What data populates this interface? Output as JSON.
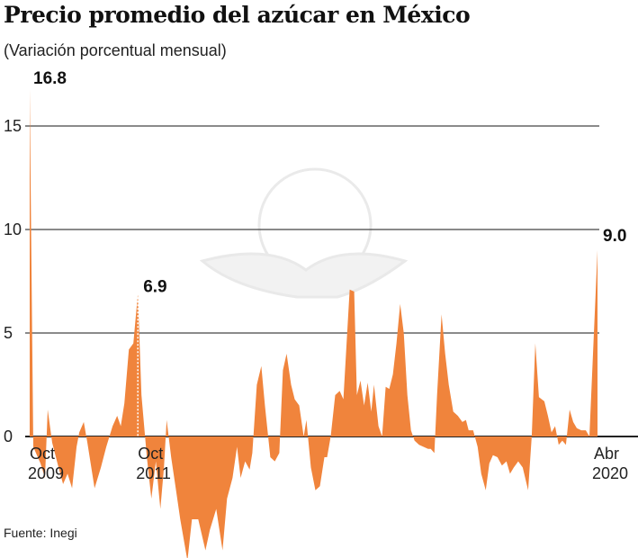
{
  "chart_data": {
    "type": "area",
    "title": "Precio promedio del azúcar en México",
    "subtitle": "(Variación porcentual mensual)",
    "source": "Fuente: Inegi",
    "xlabel": "",
    "ylabel": "",
    "ylim": [
      -6.5,
      17
    ],
    "yticks": [
      0,
      5,
      10,
      15
    ],
    "ytick_labels": [
      "0",
      "5",
      "10",
      "15"
    ],
    "grid": true,
    "x_unit": "months since Oct 2009",
    "xlim": [
      0,
      126
    ],
    "xticks": [
      {
        "month": 0,
        "line1": "Oct",
        "line2": "2009"
      },
      {
        "month": 24,
        "line1": "Oct",
        "line2": "2011"
      },
      {
        "month": 126,
        "line1": "Abr",
        "line2": "2020"
      }
    ],
    "annotations": [
      {
        "month": 0,
        "value": 16.8,
        "label": "16.8"
      },
      {
        "month": 24,
        "value": 6.9,
        "label": "6.9"
      },
      {
        "month": 126,
        "value": 9.0,
        "label": "9.0"
      }
    ],
    "color": "#f0843c",
    "x": [
      0,
      0.8,
      2.4,
      3.4,
      4,
      5,
      6.4,
      7.4,
      8.4,
      9.4,
      10.4,
      11,
      12,
      12.8,
      14.4,
      15.8,
      17,
      18.4,
      19.4,
      20.2,
      21,
      22,
      23,
      24,
      24.8,
      26,
      27,
      28,
      29,
      29.8,
      30.4,
      31.4,
      32.4,
      33.4,
      35,
      36,
      37.4,
      39,
      40,
      41.4,
      42.8,
      43.8,
      45,
      46,
      46.8,
      47.8,
      48.8,
      49.4,
      50.4,
      51.4,
      52.2,
      53.4,
      54.4,
      55.4,
      56.2,
      57,
      58,
      58.8,
      59.8,
      60.8,
      61.4,
      62.4,
      63.4,
      64.4,
      65.4,
      66,
      66.8,
      67.8,
      68.8,
      69.6,
      71,
      72,
      72.6,
      73.4,
      74.2,
      75,
      75.8,
      76.4,
      77.4,
      78.2,
      79,
      79.8,
      80.6,
      81.4,
      82.2,
      83,
      83.8,
      84.6,
      85.4,
      86.4,
      87.4,
      88.4,
      89,
      89.8,
      90.4,
      91.4,
      92.2,
      93,
      94,
      95,
      96,
      96.8,
      97.4,
      98.4,
      99.4,
      100.2,
      101.2,
      102,
      102.8,
      103.8,
      104.8,
      105.8,
      106.6,
      107.4,
      108.4,
      109.4,
      110.6,
      111.4,
      112.2,
      113,
      114.2,
      115,
      115.8,
      116.6,
      117.4,
      118.2,
      119,
      119.8,
      120.6,
      121.4,
      122.4,
      123.4,
      124.2,
      125,
      126
    ],
    "values": [
      16.8,
      -0.5,
      -1.3,
      -2.0,
      1.3,
      -0.3,
      -1.5,
      -2.3,
      -1.8,
      -2.5,
      -0.5,
      0.2,
      0.7,
      -0.3,
      -2.5,
      -1.5,
      -0.5,
      0.5,
      1.0,
      0.5,
      1.6,
      4.2,
      4.5,
      6.9,
      2.0,
      -1.0,
      -3.0,
      -1.2,
      -3.5,
      -1.5,
      0.8,
      -1.0,
      -2.5,
      -4.0,
      -6.0,
      -4.0,
      -4.0,
      -5.5,
      -4.5,
      -3.5,
      -5.5,
      -3.0,
      -2.0,
      -0.5,
      -2.0,
      -1.2,
      -1.6,
      -0.8,
      2.5,
      3.4,
      1.5,
      -1.0,
      -1.2,
      -0.8,
      3.2,
      4.0,
      2.5,
      1.8,
      1.5,
      0,
      0.8,
      -1.5,
      -2.6,
      -2.4,
      -1.0,
      -1.0,
      0,
      2.0,
      2.2,
      1.8,
      7.1,
      7.0,
      2.0,
      2.7,
      1.5,
      2.6,
      1.2,
      2.5,
      0.5,
      0,
      2.4,
      2.3,
      3.0,
      4.5,
      6.4,
      5.0,
      2.0,
      0.3,
      -0.2,
      -0.4,
      -0.5,
      -0.6,
      -0.6,
      -0.8,
      2.0,
      5.9,
      4.0,
      2.5,
      1.2,
      1.0,
      0.7,
      0.8,
      0.3,
      0.3,
      -0.5,
      -1.8,
      -2.6,
      -1.3,
      -0.9,
      -1.0,
      -1.4,
      -1.2,
      -1.8,
      -1.5,
      -1.2,
      -1.5,
      -2.6,
      0,
      4.5,
      1.9,
      1.7,
      1.0,
      0.2,
      0.5,
      -0.4,
      -0.2,
      -0.4,
      1.3,
      0.7,
      0.4,
      0.3,
      0.3,
      0,
      4.0,
      9.0
    ]
  }
}
